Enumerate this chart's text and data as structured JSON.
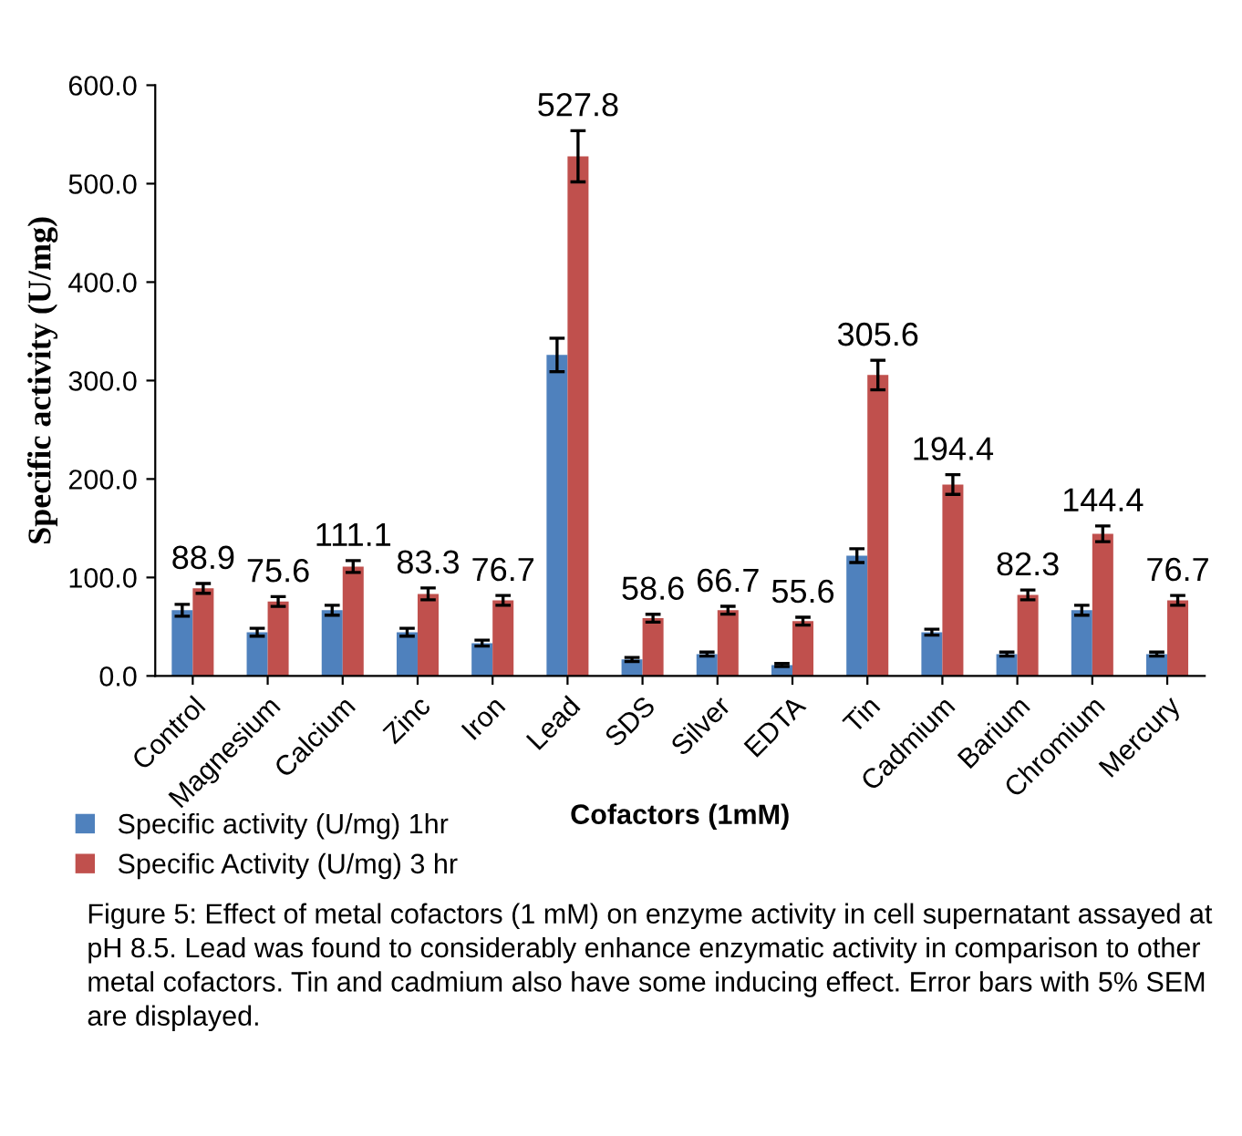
{
  "chart_data": {
    "type": "bar",
    "xlabel": "Cofactors (1mM)",
    "ylabel": "Specific activity (U/mg)",
    "categories": [
      "Control",
      "Magnesium",
      "Calcium",
      "Zinc",
      "Iron",
      "Lead",
      "SDS",
      "Silver",
      "EDTA",
      "Tin",
      "Cadmium",
      "Barium",
      "Chromium",
      "Mercury"
    ],
    "series": [
      {
        "name": "Specific activity (U/mg) 1hr",
        "color": "#4f81bd",
        "values": [
          66.7,
          44.4,
          66.7,
          44.4,
          33.3,
          326,
          16.7,
          22.2,
          11.1,
          122.2,
          44.4,
          22.2,
          66.7,
          22.2
        ],
        "errors": [
          6,
          4,
          5,
          4,
          3,
          17,
          2,
          2,
          1.5,
          7,
          3,
          2,
          5,
          2
        ]
      },
      {
        "name": "Specific Activity (U/mg) 3 hr",
        "color": "#c0504d",
        "values": [
          88.9,
          75.6,
          111.1,
          83.3,
          76.7,
          527.8,
          58.6,
          66.7,
          55.6,
          305.6,
          194.4,
          82.3,
          144.4,
          76.7
        ],
        "errors": [
          5,
          5,
          6,
          6,
          5,
          26,
          4,
          4,
          4,
          15,
          10,
          5,
          8,
          5
        ],
        "value_labels": [
          "88.9",
          "75.6",
          "111.1",
          "83.3",
          "76.7",
          "527.8",
          "58.6",
          "66.7",
          "55.6",
          "305.6",
          "194.4",
          "82.3",
          "144.4",
          "76.7"
        ]
      }
    ],
    "ylim": [
      0,
      600
    ],
    "yticks": [
      {
        "value": 0,
        "label": "0.0"
      },
      {
        "value": 100,
        "label": "100.0"
      },
      {
        "value": 200,
        "label": "200.0"
      },
      {
        "value": 300,
        "label": "300.0"
      },
      {
        "value": 400,
        "label": "400.0"
      },
      {
        "value": 500,
        "label": "500.0"
      },
      {
        "value": 600,
        "label": "600.0"
      }
    ],
    "grid": false,
    "legend": "bottom left",
    "annotations": [
      "Figure 5: Effect of metal cofactors (1 mM) on enzyme activity in cell supernatant assayed at pH 8.5. Lead was found to considerably enhance enzymatic activity in comparison to other metal cofactors. Tin and cadmium also have some inducing effect. Error bars with 5% SEM are displayed."
    ]
  }
}
